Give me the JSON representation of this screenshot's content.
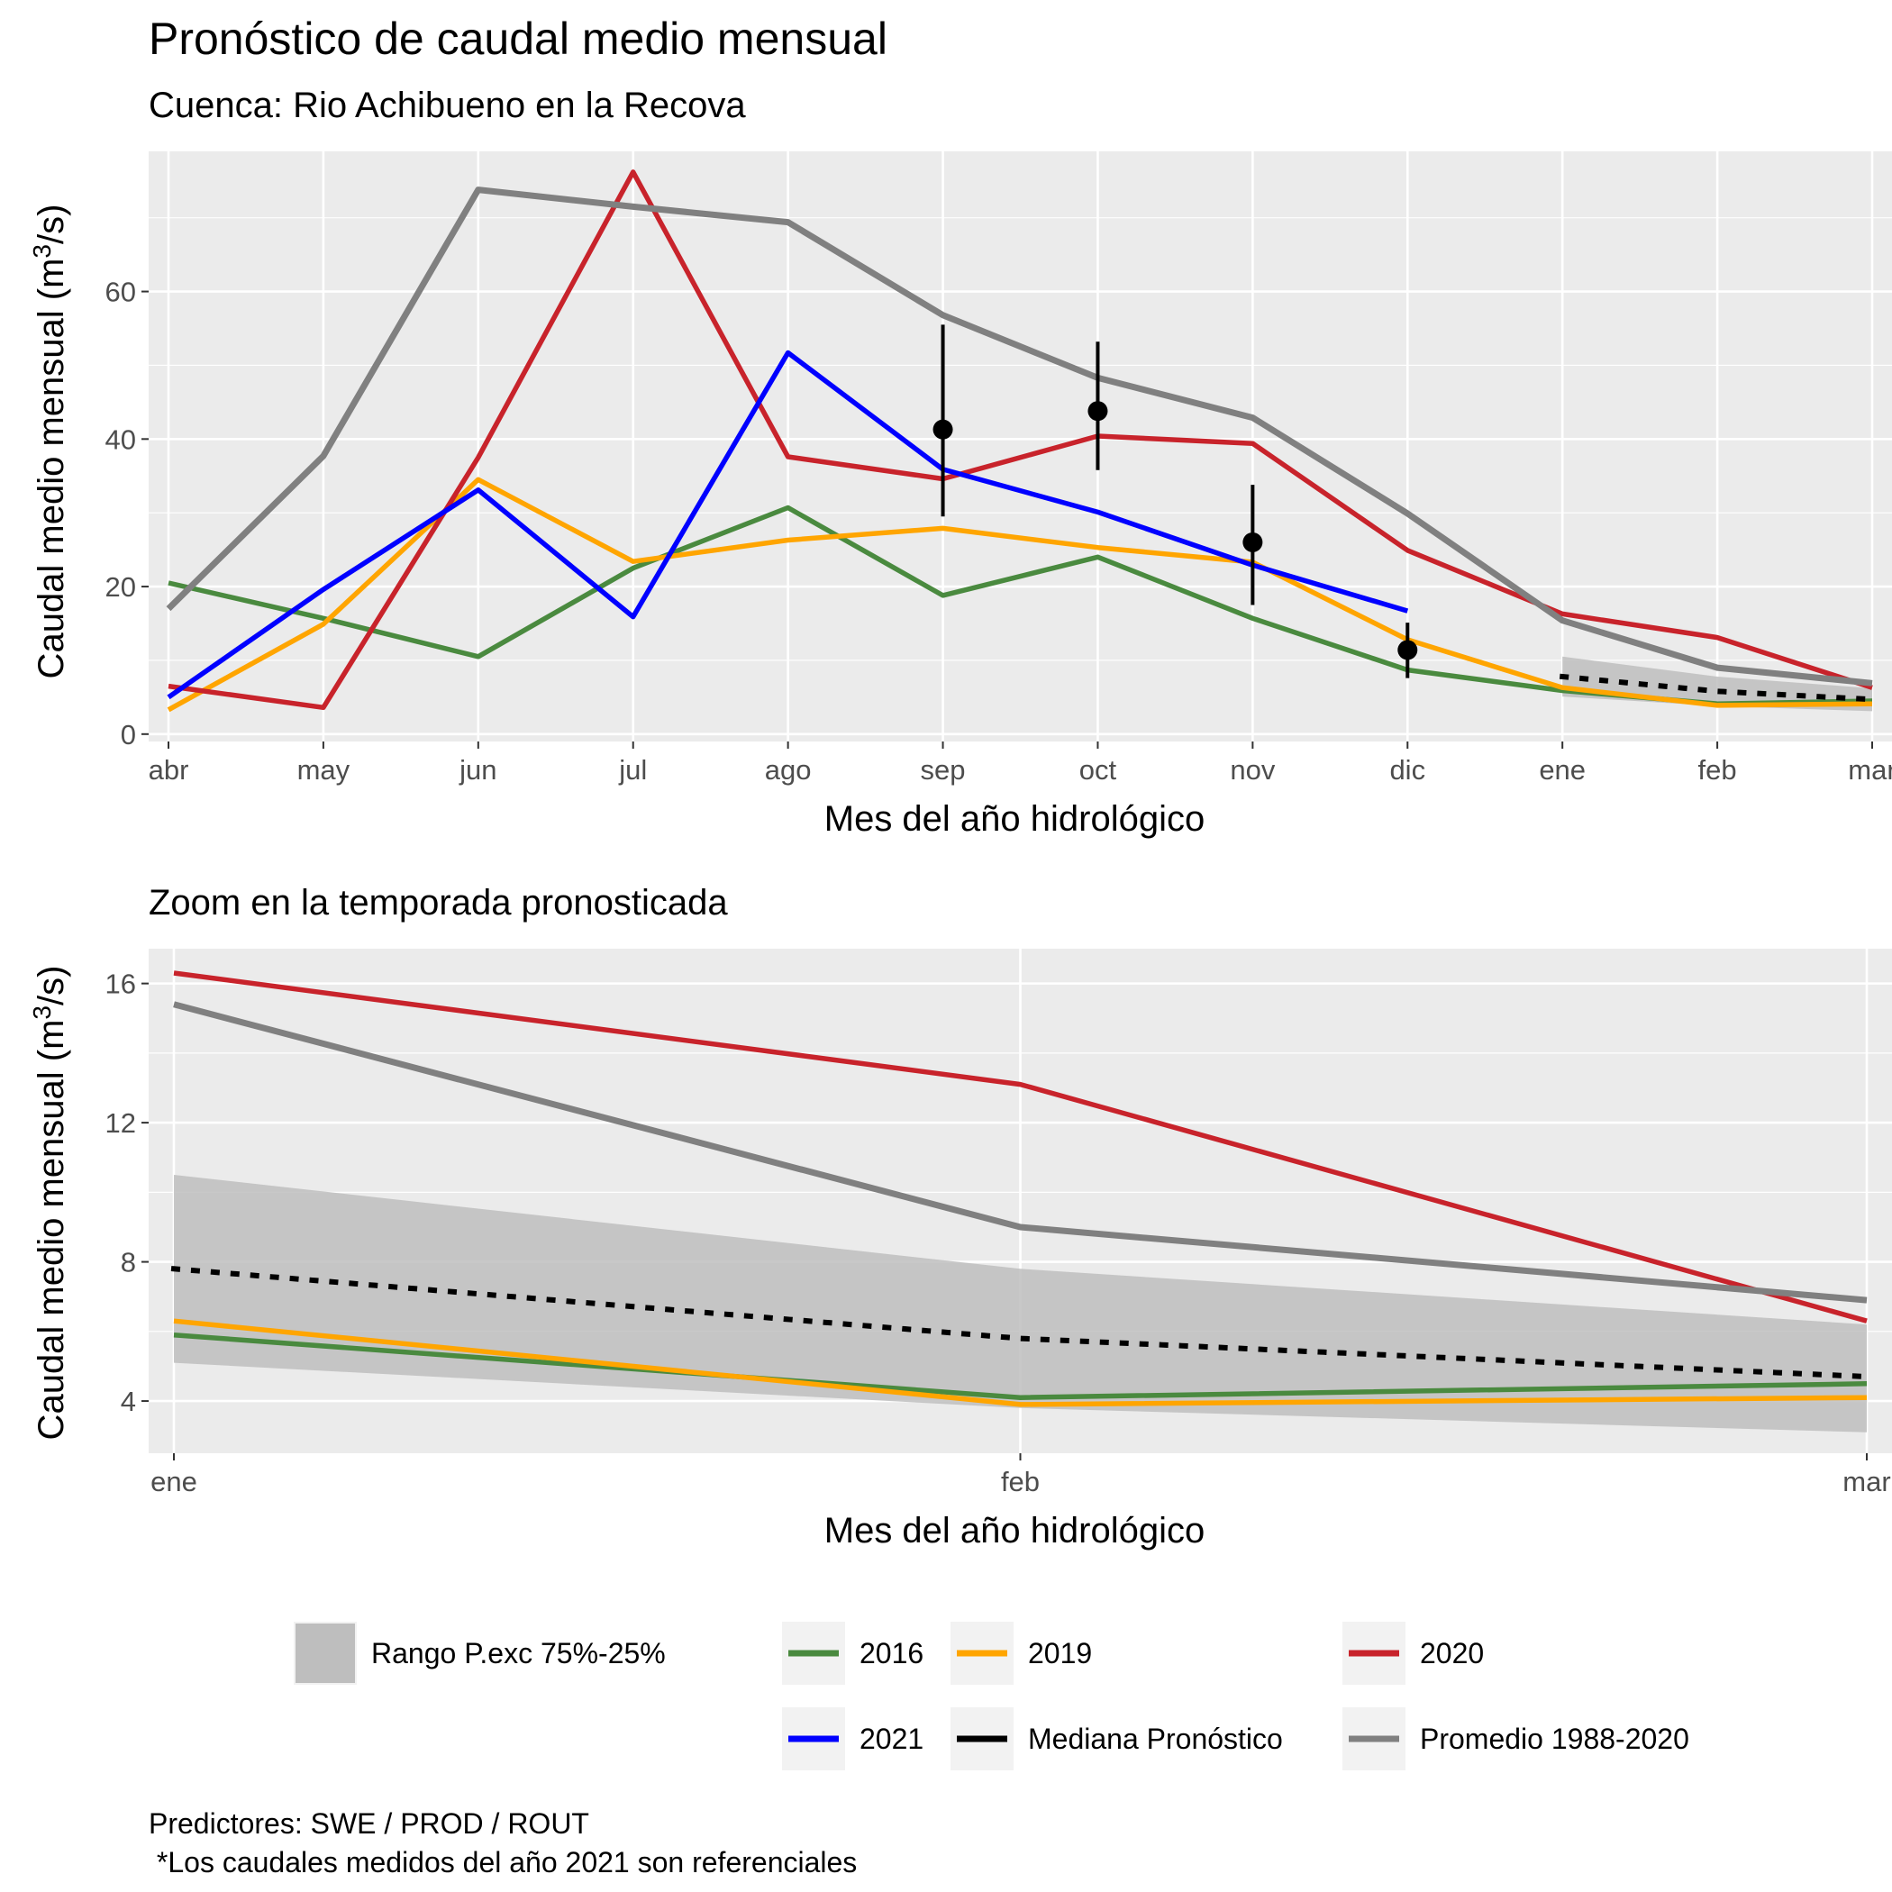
{
  "title": "Pronóstico de caudal medio mensual",
  "subtitle": "Cuenca: Rio Achibueno en la Recova",
  "zoom_title": "Zoom en la temporada pronosticada",
  "caption_lines": [
    "Predictores: SWE / PROD / ROUT",
    " *Los caudales medidos del año 2021 son referenciales"
  ],
  "colors": {
    "panel_bg": "#ebebeb",
    "grid": "#ffffff",
    "band": "#bebebe",
    "s2016": "#4a8a3f",
    "s2019": "#ffa500",
    "s2020": "#c8232b",
    "s2021": "#0000ff",
    "median": "#000000",
    "promedio": "#808080",
    "point": "#000000"
  },
  "legend": [
    {
      "label": "Rango P.exc 75%-25%",
      "key": "band"
    },
    {
      "label": "2016",
      "key": "s2016"
    },
    {
      "label": "2019",
      "key": "s2019"
    },
    {
      "label": "2020",
      "key": "s2020"
    },
    {
      "label": "2021",
      "key": "s2021"
    },
    {
      "label": "Mediana Pronóstico",
      "key": "median"
    },
    {
      "label": "Promedio 1988-2020",
      "key": "promedio"
    }
  ],
  "chart_data": [
    {
      "type": "line",
      "title": "Pronóstico de caudal medio mensual",
      "subtitle": "Cuenca: Rio Achibueno en la Recova",
      "xlabel": "Mes del año hidrológico",
      "ylabel": "Caudal medio mensual (m³/s)",
      "categories": [
        "abr",
        "may",
        "jun",
        "jul",
        "ago",
        "sep",
        "oct",
        "nov",
        "dic",
        "ene",
        "feb",
        "mar"
      ],
      "ylim": [
        -1,
        79
      ],
      "yticks": [
        0,
        20,
        40,
        60
      ],
      "grid": true,
      "series": [
        {
          "name": "2016",
          "key": "s2016",
          "values": [
            20.5,
            15.7,
            10.5,
            22.5,
            30.7,
            18.8,
            24.0,
            15.7,
            8.7,
            5.9,
            4.1,
            4.5
          ]
        },
        {
          "name": "2019",
          "key": "s2019",
          "values": [
            3.3,
            14.9,
            34.5,
            23.4,
            26.3,
            27.9,
            25.3,
            23.3,
            12.8,
            6.3,
            3.9,
            4.1
          ]
        },
        {
          "name": "2020",
          "key": "s2020",
          "values": [
            6.5,
            3.6,
            37.5,
            76.2,
            37.6,
            34.6,
            40.4,
            39.4,
            24.9,
            16.3,
            13.1,
            6.3
          ]
        },
        {
          "name": "2021",
          "key": "s2021",
          "values": [
            5.0,
            19.6,
            33.1,
            15.9,
            51.7,
            35.9,
            30.1,
            22.9,
            16.7,
            null,
            null,
            null
          ]
        },
        {
          "name": "Promedio 1988-2020",
          "key": "promedio",
          "values": [
            17.0,
            37.7,
            73.8,
            71.5,
            69.4,
            56.8,
            48.3,
            42.9,
            29.9,
            15.4,
            9.0,
            6.9
          ]
        },
        {
          "name": "Mediana Pronóstico",
          "key": "median",
          "dashed": true,
          "values": [
            null,
            null,
            null,
            null,
            null,
            null,
            null,
            null,
            null,
            7.8,
            5.8,
            4.7
          ]
        }
      ],
      "band": {
        "name": "Rango P.exc 75%-25%",
        "categories": [
          "ene",
          "feb",
          "mar"
        ],
        "upper": [
          10.5,
          7.8,
          6.2
        ],
        "lower": [
          5.1,
          3.8,
          3.1
        ]
      },
      "points": [
        {
          "category": "sep",
          "value": 41.3,
          "low": 29.5,
          "high": 55.5
        },
        {
          "category": "oct",
          "value": 43.8,
          "low": 35.8,
          "high": 53.2
        },
        {
          "category": "nov",
          "value": 26.0,
          "low": 17.5,
          "high": 33.8
        },
        {
          "category": "dic",
          "value": 11.4,
          "low": 7.6,
          "high": 15.1
        }
      ]
    },
    {
      "type": "line",
      "title": "Zoom en la temporada pronosticada",
      "xlabel": "Mes del año hidrológico",
      "ylabel": "Caudal medio mensual (m³/s)",
      "categories": [
        "ene",
        "feb",
        "mar"
      ],
      "ylim": [
        2.5,
        17
      ],
      "yticks": [
        4,
        8,
        12,
        16
      ],
      "grid": true,
      "series": [
        {
          "name": "2016",
          "key": "s2016",
          "values": [
            5.9,
            4.1,
            4.5
          ]
        },
        {
          "name": "2019",
          "key": "s2019",
          "values": [
            6.3,
            3.9,
            4.1
          ]
        },
        {
          "name": "2020",
          "key": "s2020",
          "values": [
            16.3,
            13.1,
            6.3
          ]
        },
        {
          "name": "Promedio 1988-2020",
          "key": "promedio",
          "values": [
            15.4,
            9.0,
            6.9
          ]
        },
        {
          "name": "Mediana Pronóstico",
          "key": "median",
          "dashed": true,
          "values": [
            7.8,
            5.8,
            4.7
          ]
        }
      ],
      "band": {
        "name": "Rango P.exc 75%-25%",
        "categories": [
          "ene",
          "feb",
          "mar"
        ],
        "upper": [
          10.5,
          7.8,
          6.2
        ],
        "lower": [
          5.1,
          3.8,
          3.1
        ]
      }
    }
  ]
}
